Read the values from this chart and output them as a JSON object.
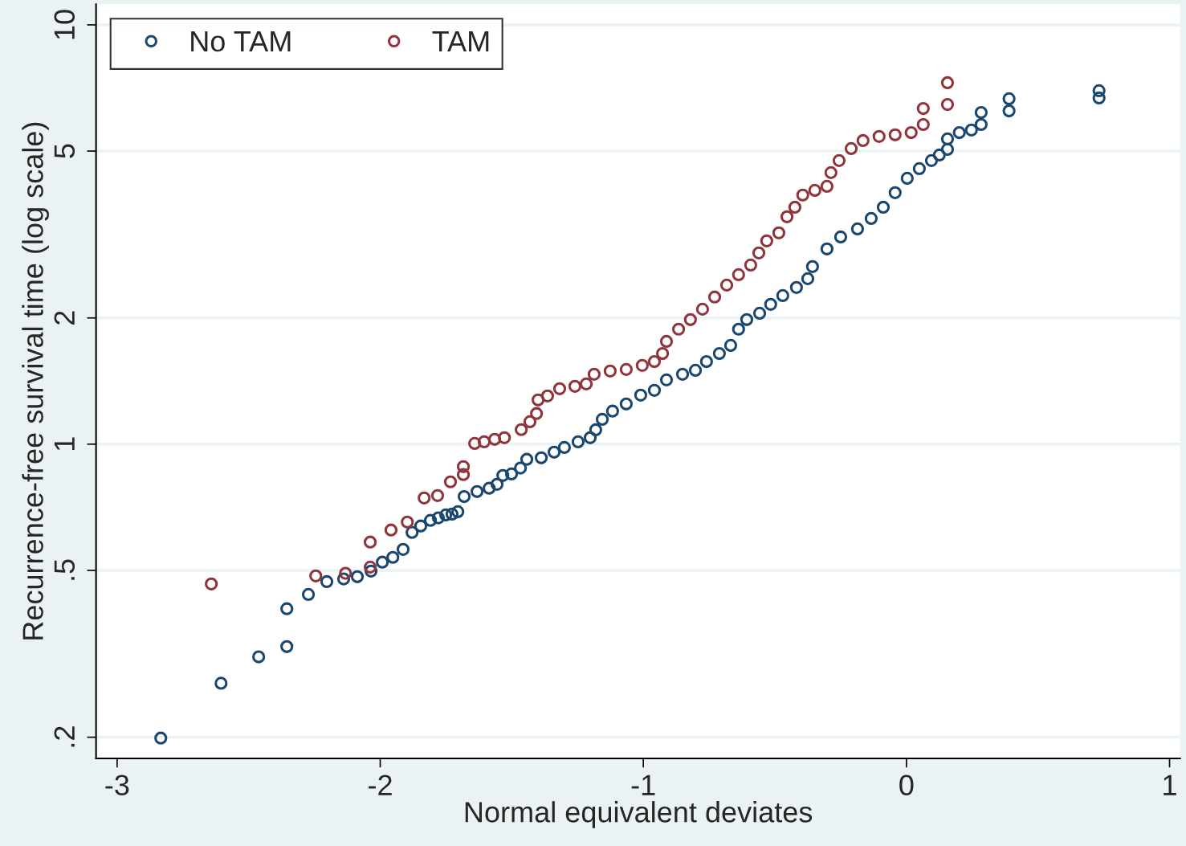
{
  "chart_data": {
    "type": "scatter",
    "xlabel": "Normal equivalent deviates",
    "ylabel": "Recurrence-free survival time (log scale)",
    "log": "y",
    "grid": "y",
    "legend": "top left",
    "marker": "circle",
    "xlim": [
      -3.08,
      1.04
    ],
    "xticks": [
      -3,
      -2,
      -1,
      0,
      1
    ],
    "ylim": [
      0.178,
      11.2
    ],
    "yticks": [
      {
        "value": 0.2,
        "label": ".2"
      },
      {
        "value": 0.5,
        "label": ".5"
      },
      1,
      2,
      5,
      10
    ],
    "series": [
      {
        "name": "No TAM",
        "color": "#1a476f",
        "x": [
          -2.834,
          -2.605,
          -2.462,
          -2.355,
          -2.355,
          -2.273,
          -2.203,
          -2.139,
          -2.087,
          -2.035,
          -1.992,
          -1.952,
          -1.913,
          -1.879,
          -1.846,
          -1.809,
          -1.779,
          -1.751,
          -1.727,
          -1.705,
          -1.681,
          -1.632,
          -1.586,
          -1.556,
          -1.534,
          -1.501,
          -1.467,
          -1.443,
          -1.388,
          -1.339,
          -1.3,
          -1.248,
          -1.202,
          -1.181,
          -1.156,
          -1.117,
          -1.065,
          -1.01,
          -0.958,
          -0.912,
          -0.851,
          -0.802,
          -0.76,
          -0.711,
          -0.668,
          -0.638,
          -0.607,
          -0.558,
          -0.516,
          -0.47,
          -0.418,
          -0.375,
          -0.357,
          -0.302,
          -0.25,
          -0.186,
          -0.134,
          -0.088,
          -0.043,
          0.003,
          0.049,
          0.095,
          0.125,
          0.156,
          0.156,
          0.201,
          0.247,
          0.284,
          0.284,
          0.39,
          0.39,
          0.732,
          0.732
        ],
        "values": [
          0.199,
          0.269,
          0.311,
          0.329,
          0.405,
          0.438,
          0.47,
          0.477,
          0.483,
          0.498,
          0.523,
          0.537,
          0.561,
          0.616,
          0.638,
          0.658,
          0.667,
          0.678,
          0.681,
          0.69,
          0.75,
          0.771,
          0.785,
          0.802,
          0.842,
          0.849,
          0.877,
          0.92,
          0.928,
          0.957,
          0.982,
          1.013,
          1.036,
          1.082,
          1.146,
          1.199,
          1.247,
          1.309,
          1.344,
          1.423,
          1.468,
          1.5,
          1.574,
          1.645,
          1.72,
          1.88,
          1.982,
          2.052,
          2.155,
          2.261,
          2.364,
          2.481,
          2.651,
          2.922,
          3.12,
          3.261,
          3.454,
          3.673,
          3.979,
          4.306,
          4.54,
          4.746,
          4.893,
          5.047,
          5.345,
          5.535,
          5.613,
          5.785,
          6.18,
          6.235,
          6.665,
          6.695,
          6.966
        ]
      },
      {
        "name": "TAM",
        "color": "#90353b",
        "x": [
          -2.642,
          -2.245,
          -2.132,
          -2.038,
          -2.038,
          -1.959,
          -1.897,
          -1.833,
          -1.782,
          -1.733,
          -1.684,
          -1.684,
          -1.641,
          -1.605,
          -1.565,
          -1.528,
          -1.464,
          -1.431,
          -1.406,
          -1.4,
          -1.364,
          -1.318,
          -1.26,
          -1.217,
          -1.187,
          -1.126,
          -1.065,
          -1.004,
          -0.958,
          -0.927,
          -0.912,
          -0.866,
          -0.821,
          -0.775,
          -0.729,
          -0.683,
          -0.638,
          -0.592,
          -0.561,
          -0.531,
          -0.485,
          -0.454,
          -0.424,
          -0.394,
          -0.348,
          -0.302,
          -0.287,
          -0.256,
          -0.21,
          -0.165,
          -0.104,
          -0.043,
          0.018,
          0.064,
          0.064,
          0.156,
          0.156
        ],
        "values": [
          0.464,
          0.485,
          0.492,
          0.509,
          0.584,
          0.624,
          0.652,
          0.744,
          0.754,
          0.813,
          0.846,
          0.884,
          1.004,
          1.013,
          1.027,
          1.036,
          1.083,
          1.131,
          1.183,
          1.275,
          1.303,
          1.356,
          1.374,
          1.392,
          1.468,
          1.494,
          1.507,
          1.541,
          1.574,
          1.645,
          1.758,
          1.88,
          1.982,
          2.098,
          2.243,
          2.395,
          2.536,
          2.674,
          2.858,
          3.053,
          3.191,
          3.486,
          3.673,
          3.928,
          4.03,
          4.12,
          4.442,
          4.746,
          5.07,
          5.297,
          5.418,
          5.468,
          5.535,
          5.785,
          6.318,
          6.457,
          7.278
        ]
      }
    ]
  }
}
